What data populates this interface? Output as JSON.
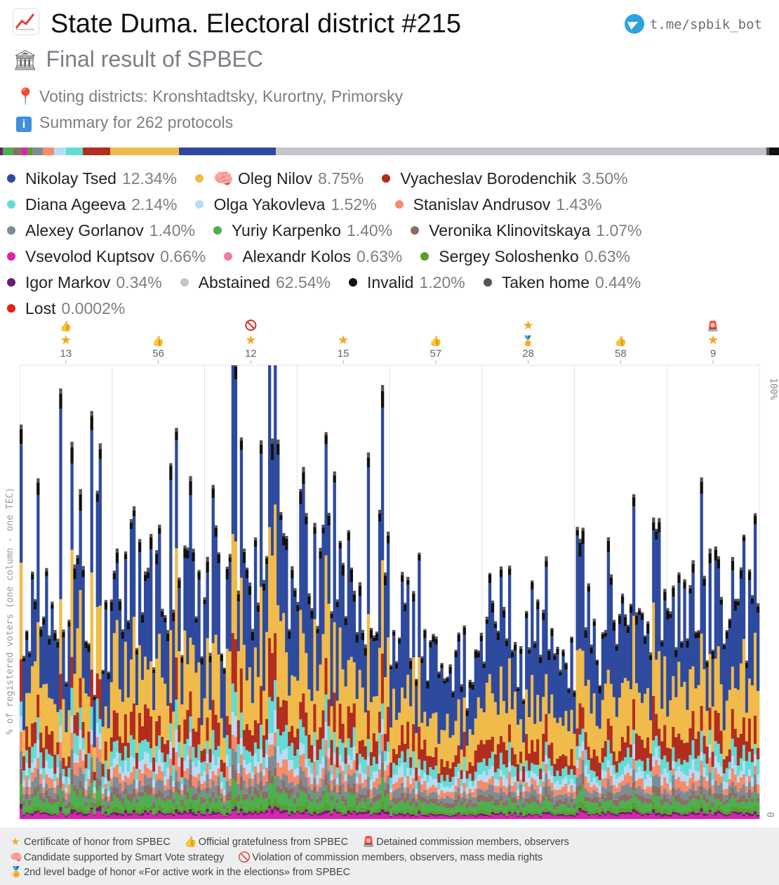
{
  "header": {
    "title": "State Duma. Electoral district #215",
    "subtitle": "Final result of SPBEC",
    "telegram": "t.me/spbik_bot",
    "districts": "Voting districts: Kronshtadtsky, Kurortny, Primorsky",
    "summary": "Summary for 262 protocols"
  },
  "colors": {
    "tsed": "#2e4a9e",
    "nilov": "#f0bb4a",
    "borodenchik": "#b22d1f",
    "ageeva": "#63dcd6",
    "yakovleva": "#b9dcf5",
    "andrusov": "#f88b6a",
    "gorlanov": "#7f8c96",
    "karpenko": "#4caf50",
    "klinovitskaya": "#8d6e63",
    "kuptsov": "#e020b0",
    "kolos": "#f27aa8",
    "soloshenko": "#5a9e2c",
    "markov": "#6a1f70",
    "abstained": "#c2c5c9",
    "invalid": "#111111",
    "taken_home": "#555555",
    "lost": "#e81c1c"
  },
  "legend": [
    {
      "key": "tsed",
      "name": "Nikolay Tsed",
      "pct": "12.34%",
      "icon": ""
    },
    {
      "key": "nilov",
      "name": "Oleg Nilov",
      "pct": "8.75%",
      "icon": "brain-icon"
    },
    {
      "key": "borodenchik",
      "name": "Vyacheslav Borodenchik",
      "pct": "3.50%",
      "icon": ""
    },
    {
      "key": "ageeva",
      "name": "Diana Ageeva",
      "pct": "2.14%",
      "icon": ""
    },
    {
      "key": "yakovleva",
      "name": "Olga Yakovleva",
      "pct": "1.52%",
      "icon": ""
    },
    {
      "key": "andrusov",
      "name": "Stanislav Andrusov",
      "pct": "1.43%",
      "icon": ""
    },
    {
      "key": "gorlanov",
      "name": "Alexey Gorlanov",
      "pct": "1.40%",
      "icon": ""
    },
    {
      "key": "karpenko",
      "name": "Yuriy Karpenko",
      "pct": "1.40%",
      "icon": ""
    },
    {
      "key": "klinovitskaya",
      "name": "Veronika Klinovitskaya",
      "pct": "1.07%",
      "icon": ""
    },
    {
      "key": "kuptsov",
      "name": "Vsevolod Kuptsov",
      "pct": "0.66%",
      "icon": ""
    },
    {
      "key": "kolos",
      "name": "Alexandr Kolos",
      "pct": "0.63%",
      "icon": ""
    },
    {
      "key": "soloshenko",
      "name": "Sergey Soloshenko",
      "pct": "0.63%",
      "icon": ""
    },
    {
      "key": "markov",
      "name": "Igor Markov",
      "pct": "0.34%",
      "icon": ""
    },
    {
      "key": "abstained",
      "name": "Abstained",
      "pct": "62.54%",
      "icon": ""
    },
    {
      "key": "invalid",
      "name": "Invalid",
      "pct": "1.20%",
      "icon": ""
    },
    {
      "key": "taken_home",
      "name": "Taken home",
      "pct": "0.44%",
      "icon": ""
    },
    {
      "key": "lost",
      "name": "Lost",
      "pct": "0.0002%",
      "icon": ""
    }
  ],
  "chart_data": {
    "type": "bar",
    "stacked": true,
    "ylabel": "% of registered voters (one column - one TEC)",
    "ylim": [
      0,
      100
    ],
    "y_tick_labels": [
      "100%",
      "0"
    ],
    "x_tick_labels": [
      "13",
      "56",
      "12",
      "15",
      "57",
      "28",
      "58",
      "9"
    ],
    "x_tick_icons": [
      [
        "thumbs-up-icon",
        "star-icon"
      ],
      [
        "thumbs-up-icon"
      ],
      [
        "prohibited-icon",
        "star-icon"
      ],
      [
        "star-icon"
      ],
      [
        "thumbs-up-icon"
      ],
      [
        "star-icon",
        "medal-icon"
      ],
      [
        "thumbs-up-icon"
      ],
      [
        "siren-icon",
        "star-icon"
      ]
    ],
    "protocols": 262,
    "series_order": [
      "kuptsov",
      "markov",
      "soloshenko",
      "karpenko",
      "klinovitskaya",
      "gorlanov",
      "andrusov",
      "yakovleva",
      "ageeva",
      "borodenchik",
      "nilov",
      "tsed",
      "invalid",
      "taken_home",
      "abstained"
    ],
    "aggregate_shares": {
      "tsed": 12.34,
      "nilov": 8.75,
      "borodenchik": 3.5,
      "ageeva": 2.14,
      "yakovleva": 1.52,
      "andrusov": 1.43,
      "gorlanov": 1.4,
      "karpenko": 1.4,
      "klinovitskaya": 1.07,
      "kuptsov": 0.66,
      "kolos": 0.63,
      "soloshenko": 0.63,
      "markov": 0.34,
      "abstained": 62.54,
      "invalid": 1.2,
      "taken_home": 0.44,
      "lost": 0.0002
    },
    "turnout_by_section": [
      {
        "section": "13",
        "turnout_range": [
          30,
          90
        ]
      },
      {
        "section": "56",
        "turnout_range": [
          35,
          90
        ]
      },
      {
        "section": "12",
        "turnout_range": [
          35,
          100
        ]
      },
      {
        "section": "15",
        "turnout_range": [
          40,
          100
        ]
      },
      {
        "section": "57",
        "turnout_range": [
          30,
          55
        ]
      },
      {
        "section": "28",
        "turnout_range": [
          30,
          60
        ]
      },
      {
        "section": "58",
        "turnout_range": [
          35,
          75
        ]
      },
      {
        "section": "9",
        "turnout_range": [
          40,
          70
        ]
      }
    ]
  },
  "footer": {
    "certificate": "Certificate of honor from SPBEC",
    "gratefulness": "Official gratefulness from SPBEC",
    "detained": "Detained commission members, observers",
    "smart_vote": "Candidate supported by Smart Vote strategy",
    "violation": "Violation of commission members, observers, mass media rights",
    "badge": "2nd level badge of honor «For active work in the elections» from SPBEC"
  }
}
